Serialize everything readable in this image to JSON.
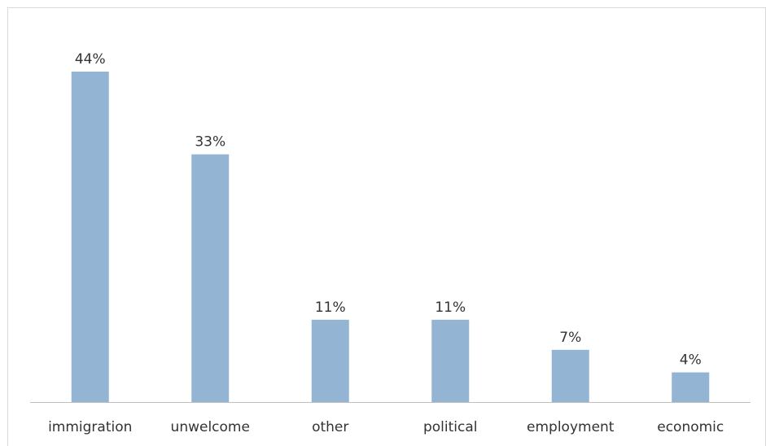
{
  "chart_data": {
    "type": "bar",
    "categories": [
      "immigration",
      "unwelcome",
      "other",
      "political",
      "employment",
      "economic"
    ],
    "values": [
      44,
      33,
      11,
      11,
      7,
      4
    ],
    "value_labels": [
      "44%",
      "33%",
      "11%",
      "11%",
      "7%",
      "4%"
    ],
    "value_unit": "%",
    "title": "",
    "xlabel": "",
    "ylabel": "",
    "ylim": [
      0,
      44
    ],
    "grid": false,
    "legend": "none",
    "bar_color": "#94B4D3",
    "axis_color": "#BFBFBF",
    "border_color": "#D9D9D9"
  }
}
